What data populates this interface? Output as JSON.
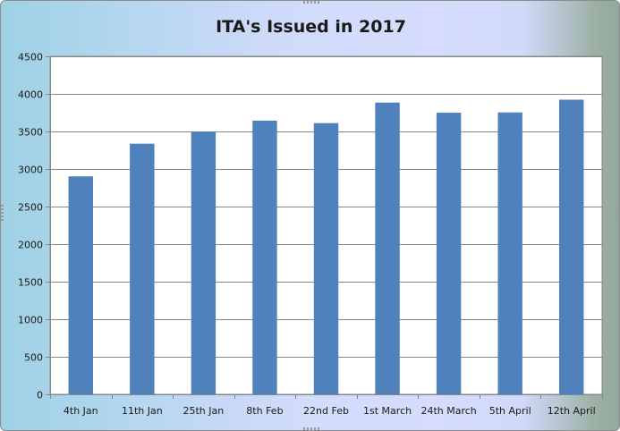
{
  "chart_data": {
    "type": "bar",
    "title": "ITA's Issued in 2017",
    "categories": [
      "4th Jan",
      "11th Jan",
      "25th Jan",
      "8th Feb",
      "22nd Feb",
      "1st March",
      "24th March",
      "5th April",
      "12th April"
    ],
    "values": [
      2902,
      3337,
      3499,
      3644,
      3611,
      3884,
      3749,
      3753,
      3923
    ],
    "ylim": [
      0,
      4500
    ],
    "yticks": [
      0,
      500,
      1000,
      1500,
      2000,
      2500,
      3000,
      3500,
      4000,
      4500
    ],
    "xlabel": "",
    "ylabel": "",
    "grid": true,
    "legend": "none",
    "bar_color": "#4f81bd"
  }
}
